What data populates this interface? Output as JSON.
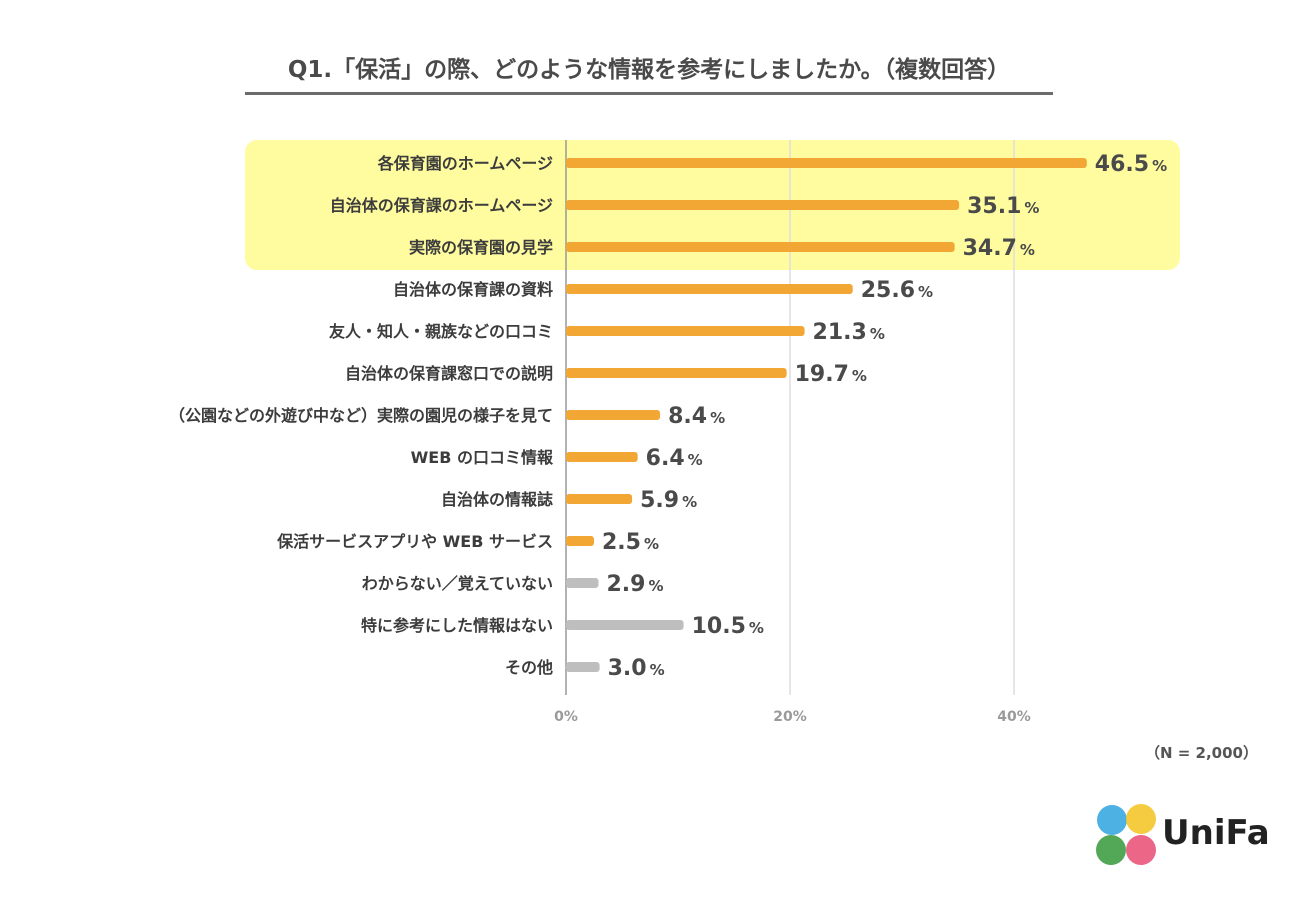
{
  "chart_data": {
    "type": "bar",
    "orientation": "horizontal",
    "title": "Q1.「保活」の際、どのような情報を参考にしましたか。（複数回答）",
    "categories": [
      "各保育園のホームページ",
      "自治体の保育課のホームページ",
      "実際の保育園の見学",
      "自治体の保育課の資料",
      "友人・知人・親族などの口コミ",
      "自治体の保育課窓口での説明",
      "（公園などの外遊び中など）実際の園児の様子を見て",
      "WEB の口コミ情報",
      "自治体の情報誌",
      "保活サービスアプリや WEB サービス",
      "わからない／覚えていない",
      "特に参考にした情報はない",
      "その他"
    ],
    "values": [
      46.5,
      35.1,
      34.7,
      25.6,
      21.3,
      19.7,
      8.4,
      6.4,
      5.9,
      2.5,
      2.9,
      10.5,
      3.0
    ],
    "value_labels": [
      "46.5",
      "35.1",
      "34.7",
      "25.6",
      "21.3",
      "19.7",
      "8.4",
      "6.4",
      "5.9",
      "2.5",
      "2.9",
      "10.5",
      "3.0"
    ],
    "unit": "%",
    "bar_groups": [
      "orange",
      "orange",
      "orange",
      "orange",
      "orange",
      "orange",
      "orange",
      "orange",
      "orange",
      "orange",
      "gray",
      "gray",
      "gray"
    ],
    "highlighted_rows": [
      0,
      1,
      2
    ],
    "xlim": [
      0,
      60
    ],
    "xticks": [
      0,
      20,
      40
    ],
    "xtick_labels": [
      "0%",
      "20%",
      "40%"
    ],
    "grid": true,
    "xlabel": "",
    "ylabel": "",
    "sample_note": "（N = 2,000）"
  },
  "colors": {
    "bar_orange": "#F2A735",
    "bar_gray": "#BEBEBE",
    "highlight": "#FFFCA0",
    "gridline": "#DDDDDD",
    "axis": "#999999"
  },
  "logo": {
    "text": "UniFa",
    "dot_colors": [
      "#3BA9E0",
      "#F4C72B",
      "#3F9E45",
      "#E9557A"
    ]
  }
}
